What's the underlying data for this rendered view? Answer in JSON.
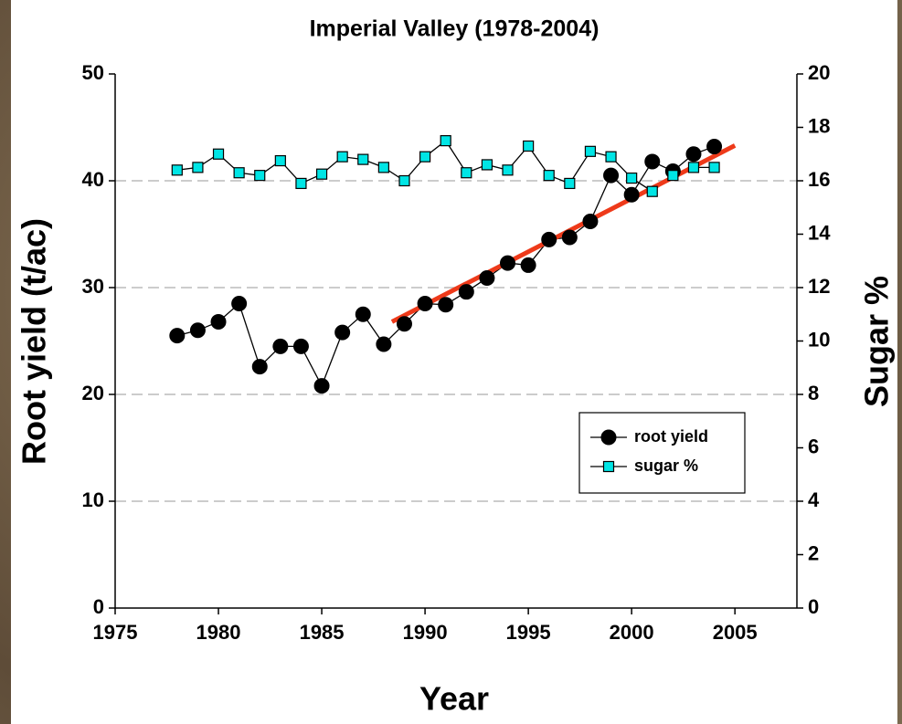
{
  "chart_data": {
    "type": "line",
    "title": "Imperial Valley (1978-2004)",
    "xlabel": "Year",
    "ylabel": "Root yield (t/ac)",
    "y2label": "Sugar %",
    "x": [
      1978,
      1979,
      1980,
      1981,
      1982,
      1983,
      1984,
      1985,
      1986,
      1987,
      1988,
      1989,
      1990,
      1991,
      1992,
      1993,
      1994,
      1995,
      1996,
      1997,
      1998,
      1999,
      2000,
      2001,
      2002,
      2003,
      2004
    ],
    "series": [
      {
        "name": "root yield",
        "color": "#000000",
        "marker": "circle",
        "values": [
          25.5,
          26.0,
          26.8,
          28.5,
          22.6,
          24.5,
          24.5,
          20.8,
          25.8,
          27.5,
          24.7,
          26.6,
          28.5,
          28.4,
          29.6,
          30.9,
          32.3,
          32.1,
          34.5,
          34.7,
          36.2,
          40.5,
          38.7,
          41.8,
          40.9,
          42.5,
          43.2
        ]
      },
      {
        "name": "sugar %",
        "color": "#00e5e5",
        "marker": "square",
        "axis": "y2",
        "values": [
          16.4,
          16.5,
          17.0,
          16.3,
          16.2,
          16.75,
          15.9,
          16.25,
          16.9,
          16.8,
          16.5,
          16.0,
          16.9,
          17.5,
          16.3,
          16.6,
          16.4,
          17.3,
          16.2,
          15.9,
          17.1,
          16.9,
          16.1,
          15.6,
          16.2,
          16.5,
          16.5
        ]
      }
    ],
    "trendline": {
      "color": "#ee3a1a",
      "x": [
        1988.4,
        2005
      ],
      "values": [
        26.8,
        43.3
      ]
    },
    "xlim": [
      1975,
      2008
    ],
    "xticks": [
      1975,
      1980,
      1985,
      1990,
      1995,
      2000,
      2005
    ],
    "ylim": [
      0,
      50
    ],
    "yticks": [
      0,
      10,
      20,
      30,
      40,
      50
    ],
    "y2lim": [
      0,
      20
    ],
    "y2ticks": [
      0,
      2,
      4,
      6,
      8,
      10,
      12,
      14,
      16,
      18,
      20
    ],
    "grid": true,
    "legend": "lower right"
  }
}
